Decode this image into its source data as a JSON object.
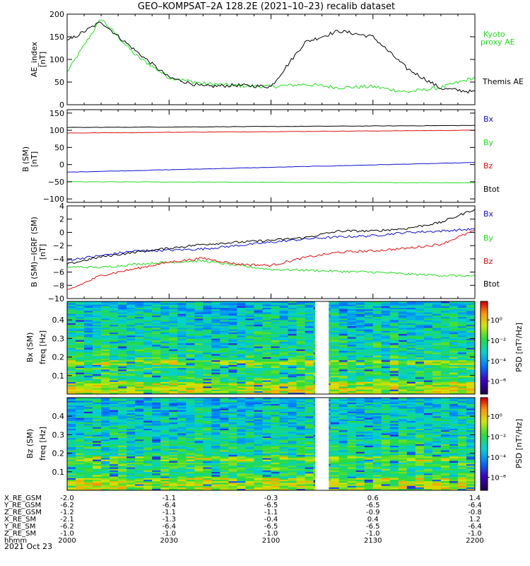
{
  "title": "GEO–KOMPSAT–2A 128.2E (2021–10–23) recalib dataset",
  "colors": {
    "black": "#000000",
    "blue": "#1010cc",
    "green": "#22dd22",
    "red": "#dd1111"
  },
  "x_ticks": [
    "2000",
    "2030",
    "2100",
    "2130",
    "2200"
  ],
  "ephemeris": {
    "rows": [
      {
        "label": "X_RE_GSM",
        "values": [
          "-2.0",
          "-1.1",
          "-0.3",
          "0.6",
          "1.4"
        ]
      },
      {
        "label": "Y_RE_GSM",
        "values": [
          "-6.2",
          "-6.4",
          "-6.5",
          "-6.5",
          "-6.4"
        ]
      },
      {
        "label": "Z_RE_GSM",
        "values": [
          "-1.2",
          "-1.1",
          "-1.1",
          "-0.9",
          "-0.8"
        ]
      },
      {
        "label": "X_RE_SM",
        "values": [
          "-2.1",
          "-1.3",
          "-0.4",
          "0.4",
          "1.2"
        ]
      },
      {
        "label": "Y_RE_SM",
        "values": [
          "-6.2",
          "-6.4",
          "-6.5",
          "-6.5",
          "-6.4"
        ]
      },
      {
        "label": "Z_RE_SM",
        "values": [
          "-1.0",
          "-1.0",
          "-1.0",
          "-1.0",
          "-1.0"
        ]
      },
      {
        "label": "hhmm",
        "values": [
          "2000",
          "2030",
          "2100",
          "2130",
          "2200"
        ]
      }
    ],
    "date": "2021 Oct 23"
  },
  "chart_data": [
    {
      "type": "line",
      "ylabel": "AE_index",
      "yunit": "[nT]",
      "ylim": [
        0,
        200
      ],
      "yticks": [
        "0",
        "50",
        "100",
        "150",
        "200"
      ],
      "x": [
        "2000",
        "2010",
        "2020",
        "2030",
        "2040",
        "2050",
        "2100",
        "2110",
        "2120",
        "2130",
        "2140",
        "2150",
        "2200"
      ],
      "series": [
        {
          "name": "Kyoto proxy AE",
          "legend": [
            "Kyoto",
            "proxy AE"
          ],
          "color": "#22dd22",
          "values": [
            72,
            190,
            110,
            60,
            47,
            42,
            40,
            45,
            38,
            40,
            28,
            38,
            60
          ]
        },
        {
          "name": "Themis AE",
          "legend": [
            "Themis AE"
          ],
          "color": "#000000",
          "values": [
            140,
            183,
            120,
            60,
            40,
            43,
            40,
            138,
            163,
            150,
            80,
            36,
            28
          ]
        }
      ]
    },
    {
      "type": "line",
      "ylabel": "B (SM)",
      "yunit": "[nT]",
      "ylim": [
        -110,
        160
      ],
      "yticks": [
        "−100",
        "−50",
        "0",
        "50",
        "100",
        "150"
      ],
      "x_range": [
        "2000",
        "2200"
      ],
      "series": [
        {
          "name": "Bx",
          "color": "#1010cc",
          "start": -22,
          "end": 6
        },
        {
          "name": "By",
          "color": "#22dd22",
          "start": -50,
          "end": -53
        },
        {
          "name": "Bz",
          "color": "#dd1111",
          "start": 92,
          "end": 100
        },
        {
          "name": "Btot",
          "color": "#000000",
          "start": 108,
          "end": 114
        }
      ]
    },
    {
      "type": "line",
      "ylabel": "B (SM)−IGRF (SM)",
      "yunit": "[nT]",
      "ylim": [
        -10,
        4
      ],
      "yticks": [
        "−10",
        "−8",
        "−6",
        "−4",
        "−2",
        "0",
        "2",
        "4"
      ],
      "x": [
        "2000",
        "2010",
        "2020",
        "2030",
        "2040",
        "2050",
        "2100",
        "2110",
        "2120",
        "2130",
        "2140",
        "2150",
        "2200"
      ],
      "series": [
        {
          "name": "Bx",
          "color": "#1010cc",
          "values": [
            -4.2,
            -3.5,
            -2.8,
            -2.7,
            -2.5,
            -2.0,
            -1.5,
            -1.0,
            -0.7,
            -0.5,
            0.0,
            0.2,
            0.5
          ]
        },
        {
          "name": "By",
          "color": "#22dd22",
          "values": [
            -5.2,
            -5.3,
            -4.8,
            -4.5,
            -4.3,
            -5.0,
            -5.6,
            -5.7,
            -5.9,
            -6.0,
            -6.3,
            -6.5,
            -6.6
          ]
        },
        {
          "name": "Bz",
          "color": "#dd1111",
          "values": [
            -8.8,
            -6.5,
            -5.5,
            -4.5,
            -3.9,
            -4.8,
            -5.0,
            -3.8,
            -3.0,
            -2.8,
            -2.4,
            -1.8,
            0.3
          ]
        },
        {
          "name": "Btot",
          "color": "#000000",
          "values": [
            -4.8,
            -3.7,
            -3.0,
            -2.4,
            -1.8,
            -1.5,
            -1.2,
            -0.8,
            0.2,
            0.2,
            0.6,
            1.5,
            3.5
          ]
        }
      ]
    },
    {
      "type": "heatmap",
      "ylabel": "Bx (SM)",
      "ylabel2": "freq [Hz]",
      "yticks": [
        "0.1",
        "0.2",
        "0.3",
        "0.4"
      ],
      "ylim": [
        0,
        0.5
      ],
      "gap": [
        "2113",
        "2117"
      ],
      "colorbar": {
        "label": "PSD [nT²/Hz]",
        "ticks": [
          "10⁰",
          "10⁻²",
          "10⁻⁴",
          "10⁻⁶"
        ]
      }
    },
    {
      "type": "heatmap",
      "ylabel": "Bz (SM)",
      "ylabel2": "freq [Hz]",
      "yticks": [
        "0.1",
        "0.2",
        "0.3",
        "0.4"
      ],
      "ylim": [
        0,
        0.5
      ],
      "gap": [
        "2113",
        "2117"
      ],
      "colorbar": {
        "label": "PSD [nT²/Hz]",
        "ticks": [
          "10⁰",
          "10⁻²",
          "10⁻⁴",
          "10⁻⁶"
        ]
      }
    }
  ]
}
